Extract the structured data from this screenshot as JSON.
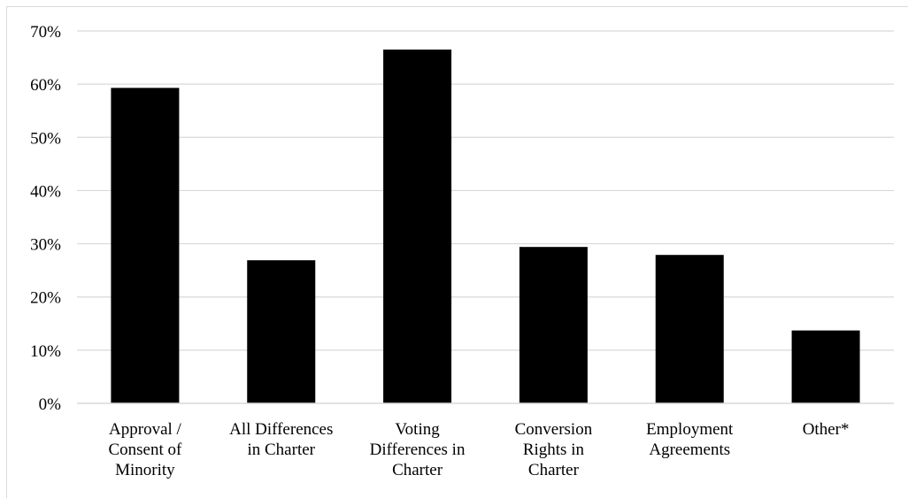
{
  "colors": {
    "bar": "#000000",
    "grid": "#d9d9d9",
    "axis": "#d9d9d9",
    "text": "#000000",
    "background": "#ffffff"
  },
  "chart_data": {
    "type": "bar",
    "title": "",
    "xlabel": "",
    "ylabel": "",
    "ylim": [
      0,
      70
    ],
    "yticks": [
      "0%",
      "10%",
      "20%",
      "30%",
      "40%",
      "50%",
      "60%",
      "70%"
    ],
    "ytick_values": [
      0,
      10,
      20,
      30,
      40,
      50,
      60,
      70
    ],
    "grid": true,
    "legend": "none",
    "categories": [
      [
        "Approval /",
        "Consent of",
        "Minority"
      ],
      [
        "All Differences",
        "in Charter"
      ],
      [
        "Voting",
        "Differences in",
        "Charter"
      ],
      [
        "Conversion",
        "Rights in",
        "Charter"
      ],
      [
        "Employment",
        "Agreements"
      ],
      [
        "Other*"
      ]
    ],
    "values": [
      59.3,
      26.9,
      66.5,
      29.4,
      27.9,
      13.7
    ],
    "unit": "%"
  }
}
